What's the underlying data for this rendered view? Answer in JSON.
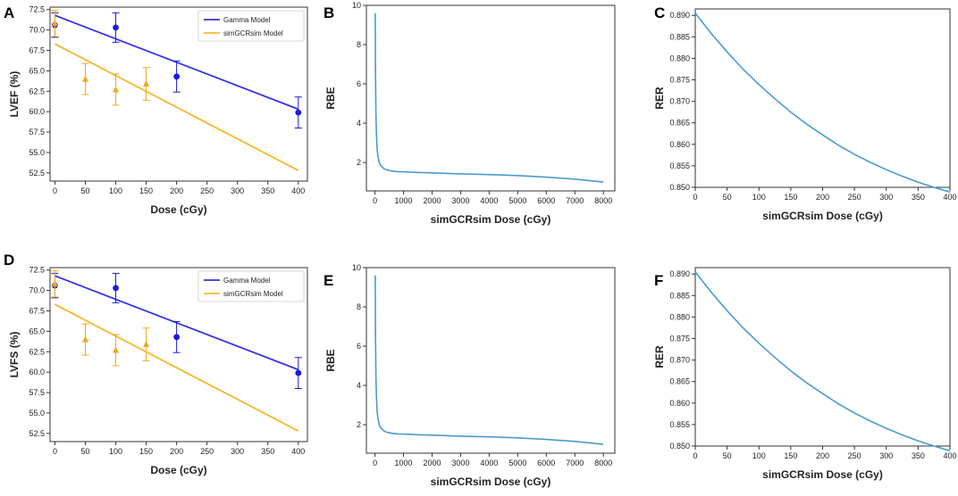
{
  "colors": {
    "gamma": "#3333e6",
    "gamma_marker": "#1a1ae0",
    "simgcr": "#f5b82e",
    "simgcr_marker": "#f0a818",
    "rbe_curve": "#4a9bd0",
    "rer_curve": "#4a9bd0",
    "axis": "#333333"
  },
  "chart_data": [
    {
      "panel": "A",
      "type": "line",
      "ylabel": "LVEF (%)",
      "xlabel": "Dose (cGy)",
      "xlim": [
        -8,
        415
      ],
      "ylim": [
        51.5,
        72.8
      ],
      "xticks": [
        0,
        50,
        100,
        150,
        200,
        250,
        300,
        350,
        400
      ],
      "yticks": [
        52.5,
        55.0,
        57.5,
        60.0,
        62.5,
        65.0,
        67.5,
        70.0,
        72.5
      ],
      "ytick_labels": [
        "52.5",
        "55.0",
        "57.5",
        "60.0",
        "62.5",
        "65.0",
        "67.5",
        "70.0",
        "72.5"
      ],
      "legend": [
        "Gamma Model",
        "simGCRsim Model"
      ],
      "series": [
        {
          "name": "Gamma Model",
          "kind": "line",
          "x": [
            0,
            400
          ],
          "y": [
            71.8,
            60.3
          ]
        },
        {
          "name": "simGCRsim Model",
          "kind": "line",
          "x": [
            0,
            400
          ],
          "y": [
            68.3,
            52.8
          ]
        },
        {
          "name": "Gamma data",
          "kind": "points",
          "marker": "circle",
          "x": [
            0,
            100,
            200,
            400
          ],
          "y": [
            70.6,
            70.3,
            64.3,
            59.9
          ],
          "err": [
            1.5,
            1.8,
            1.9,
            1.9
          ]
        },
        {
          "name": "simGCRsim data",
          "kind": "points",
          "marker": "triangle",
          "x": [
            0,
            50,
            100,
            150
          ],
          "y": [
            70.8,
            64.0,
            62.7,
            63.4
          ],
          "err": [
            1.6,
            1.9,
            1.9,
            2.0
          ]
        }
      ]
    },
    {
      "panel": "B",
      "type": "line",
      "ylabel": "RBE",
      "xlabel": "simGCRsim Dose (cGy)",
      "xlim": [
        -300,
        8400
      ],
      "ylim": [
        0.55,
        10
      ],
      "xticks": [
        0,
        1000,
        2000,
        3000,
        4000,
        5000,
        6000,
        7000,
        8000
      ],
      "yticks": [
        2,
        4,
        6,
        8,
        10
      ],
      "series": [
        {
          "name": "RBE",
          "kind": "curve",
          "x": [
            10,
            20,
            35,
            50,
            75,
            100,
            150,
            200,
            300,
            400,
            600,
            800,
            1000,
            1500,
            2000,
            3000,
            4000,
            5000,
            6000,
            7000,
            8000
          ],
          "y": [
            9.6,
            6.5,
            4.4,
            3.5,
            2.7,
            2.35,
            2.0,
            1.85,
            1.7,
            1.62,
            1.56,
            1.53,
            1.52,
            1.49,
            1.47,
            1.42,
            1.38,
            1.33,
            1.25,
            1.15,
            1.0
          ]
        }
      ]
    },
    {
      "panel": "C",
      "type": "line",
      "ylabel": "RER",
      "xlabel": "simGCRsim Dose (cGy)",
      "xlim": [
        0,
        400
      ],
      "ylim": [
        0.85,
        0.8915
      ],
      "xticks": [
        0,
        50,
        100,
        150,
        200,
        250,
        300,
        350,
        400
      ],
      "yticks": [
        0.85,
        0.855,
        0.86,
        0.865,
        0.87,
        0.875,
        0.88,
        0.885,
        0.89
      ],
      "ytick_labels": [
        "0.850",
        "0.855",
        "0.860",
        "0.865",
        "0.870",
        "0.875",
        "0.880",
        "0.885",
        "0.890"
      ],
      "series": [
        {
          "name": "RER",
          "kind": "curve",
          "x": [
            0,
            25,
            50,
            75,
            100,
            125,
            150,
            175,
            200,
            225,
            250,
            275,
            300,
            325,
            350,
            375,
            400
          ],
          "y": [
            0.8905,
            0.8858,
            0.8815,
            0.8775,
            0.8739,
            0.8706,
            0.8675,
            0.8647,
            0.8622,
            0.8598,
            0.8577,
            0.8558,
            0.8541,
            0.8526,
            0.8512,
            0.85,
            0.8489
          ]
        }
      ]
    },
    {
      "panel": "D",
      "type": "line",
      "ylabel": "LVFS (%)",
      "xlabel": "Dose (cGy)",
      "xlim": [
        -8,
        415
      ],
      "ylim": [
        51.5,
        72.8
      ],
      "xticks": [
        0,
        50,
        100,
        150,
        200,
        250,
        300,
        350,
        400
      ],
      "yticks": [
        52.5,
        55.0,
        57.5,
        60.0,
        62.5,
        65.0,
        67.5,
        70.0,
        72.5
      ],
      "ytick_labels": [
        "52.5",
        "55.0",
        "57.5",
        "60.0",
        "62.5",
        "65.0",
        "67.5",
        "70.0",
        "72.5"
      ],
      "legend": [
        "Gamma Model",
        "simGCRsim Model"
      ],
      "series": [
        {
          "name": "Gamma Model",
          "kind": "line",
          "x": [
            0,
            400
          ],
          "y": [
            71.8,
            60.3
          ]
        },
        {
          "name": "simGCRsim Model",
          "kind": "line",
          "x": [
            0,
            400
          ],
          "y": [
            68.3,
            52.8
          ]
        },
        {
          "name": "Gamma data",
          "kind": "points",
          "marker": "circle",
          "x": [
            0,
            100,
            200,
            400
          ],
          "y": [
            70.6,
            70.3,
            64.3,
            59.9
          ],
          "err": [
            1.5,
            1.8,
            1.9,
            1.9
          ]
        },
        {
          "name": "simGCRsim data",
          "kind": "points",
          "marker": "triangle",
          "x": [
            0,
            50,
            100,
            150
          ],
          "y": [
            70.8,
            64.0,
            62.7,
            63.4
          ],
          "err": [
            1.6,
            1.9,
            1.9,
            2.0
          ]
        }
      ]
    },
    {
      "panel": "E",
      "type": "line",
      "ylabel": "RBE",
      "xlabel": "simGCRsim Dose (cGy)",
      "xlim": [
        -300,
        8400
      ],
      "ylim": [
        0.55,
        10
      ],
      "xticks": [
        0,
        1000,
        2000,
        3000,
        4000,
        5000,
        6000,
        7000,
        8000
      ],
      "yticks": [
        2,
        4,
        6,
        8,
        10
      ],
      "series": [
        {
          "name": "RBE",
          "kind": "curve",
          "x": [
            10,
            20,
            35,
            50,
            75,
            100,
            150,
            200,
            300,
            400,
            600,
            800,
            1000,
            1500,
            2000,
            3000,
            4000,
            5000,
            6000,
            7000,
            8000
          ],
          "y": [
            9.6,
            6.5,
            4.4,
            3.5,
            2.7,
            2.35,
            2.0,
            1.85,
            1.7,
            1.62,
            1.56,
            1.53,
            1.52,
            1.49,
            1.47,
            1.42,
            1.38,
            1.33,
            1.25,
            1.15,
            1.0
          ]
        }
      ]
    },
    {
      "panel": "F",
      "type": "line",
      "ylabel": "RER",
      "xlabel": "simGCRsim Dose (cGy)",
      "xlim": [
        0,
        400
      ],
      "ylim": [
        0.85,
        0.8915
      ],
      "xticks": [
        0,
        50,
        100,
        150,
        200,
        250,
        300,
        350,
        400
      ],
      "yticks": [
        0.85,
        0.855,
        0.86,
        0.865,
        0.87,
        0.875,
        0.88,
        0.885,
        0.89
      ],
      "ytick_labels": [
        "0.850",
        "0.855",
        "0.860",
        "0.865",
        "0.870",
        "0.875",
        "0.880",
        "0.885",
        "0.890"
      ],
      "series": [
        {
          "name": "RER",
          "kind": "curve",
          "x": [
            0,
            25,
            50,
            75,
            100,
            125,
            150,
            175,
            200,
            225,
            250,
            275,
            300,
            325,
            350,
            375,
            400
          ],
          "y": [
            0.8905,
            0.8858,
            0.8815,
            0.8775,
            0.8739,
            0.8706,
            0.8675,
            0.8647,
            0.8622,
            0.8598,
            0.8577,
            0.8558,
            0.8541,
            0.8526,
            0.8512,
            0.85,
            0.8489
          ]
        }
      ]
    }
  ]
}
